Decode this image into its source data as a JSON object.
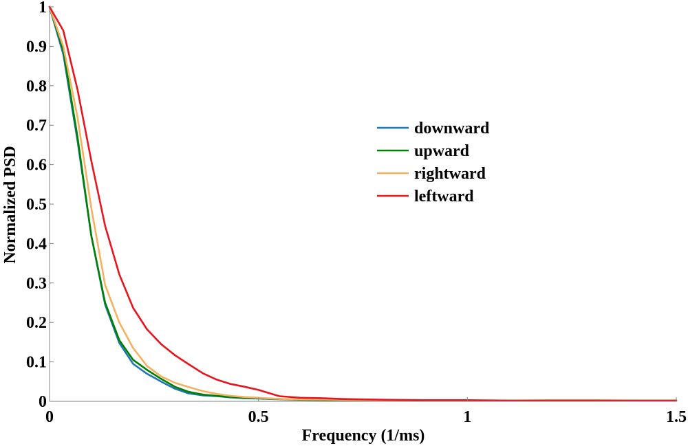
{
  "chart_data": {
    "type": "line",
    "title": "",
    "xlabel": "Frequency (1/ms)",
    "ylabel": "Normalized PSD",
    "xlim": [
      0,
      1.5
    ],
    "ylim": [
      0,
      1
    ],
    "xticks": [
      0,
      0.5,
      1,
      1.5
    ],
    "xtick_labels": [
      "0",
      "0.5",
      "1",
      "1.5"
    ],
    "yticks": [
      0,
      0.1,
      0.2,
      0.3,
      0.4,
      0.5,
      0.6,
      0.7,
      0.8,
      0.9,
      1
    ],
    "ytick_labels": [
      "0",
      "0.1",
      "0.2",
      "0.3",
      "0.4",
      "0.5",
      "0.6",
      "0.7",
      "0.8",
      "0.9",
      "1"
    ],
    "grid": false,
    "legend_position": "center-right",
    "series": [
      {
        "name": "downward",
        "color": "#1f77b4",
        "x": [
          0,
          0.033,
          0.067,
          0.1,
          0.133,
          0.167,
          0.2,
          0.233,
          0.267,
          0.3,
          0.333,
          0.367,
          0.4,
          0.433,
          0.467,
          0.5,
          0.55,
          0.6,
          0.7,
          0.8,
          0.9,
          1.0,
          1.1,
          1.2,
          1.3,
          1.4,
          1.5
        ],
        "y": [
          1.0,
          0.88,
          0.66,
          0.42,
          0.245,
          0.148,
          0.095,
          0.07,
          0.05,
          0.032,
          0.02,
          0.015,
          0.013,
          0.01,
          0.008,
          0.007,
          0.005,
          0.004,
          0.003,
          0.003,
          0.002,
          0.002,
          0.002,
          0.002,
          0.002,
          0.002,
          0.002
        ]
      },
      {
        "name": "upward",
        "color": "#008000",
        "x": [
          0,
          0.033,
          0.067,
          0.1,
          0.133,
          0.167,
          0.2,
          0.233,
          0.267,
          0.3,
          0.333,
          0.367,
          0.4,
          0.433,
          0.467,
          0.5,
          0.55,
          0.6,
          0.7,
          0.8,
          0.9,
          1.0,
          1.1,
          1.2,
          1.3,
          1.4,
          1.5
        ],
        "y": [
          1.0,
          0.89,
          0.67,
          0.42,
          0.25,
          0.155,
          0.105,
          0.08,
          0.057,
          0.037,
          0.024,
          0.017,
          0.014,
          0.011,
          0.009,
          0.008,
          0.006,
          0.004,
          0.003,
          0.003,
          0.002,
          0.002,
          0.002,
          0.002,
          0.002,
          0.002,
          0.002
        ]
      },
      {
        "name": "rightward",
        "color": "#f5b060",
        "x": [
          0,
          0.033,
          0.067,
          0.1,
          0.133,
          0.167,
          0.2,
          0.233,
          0.267,
          0.3,
          0.333,
          0.367,
          0.4,
          0.433,
          0.467,
          0.5,
          0.55,
          0.6,
          0.7,
          0.8,
          0.9,
          1.0,
          1.1,
          1.2,
          1.3,
          1.4,
          1.5
        ],
        "y": [
          1.0,
          0.9,
          0.72,
          0.49,
          0.295,
          0.2,
          0.135,
          0.09,
          0.063,
          0.047,
          0.036,
          0.026,
          0.019,
          0.014,
          0.011,
          0.009,
          0.006,
          0.005,
          0.004,
          0.003,
          0.003,
          0.002,
          0.002,
          0.003,
          0.003,
          0.002,
          0.002
        ]
      },
      {
        "name": "leftward",
        "color": "#e8141e",
        "x": [
          0,
          0.033,
          0.067,
          0.1,
          0.133,
          0.167,
          0.2,
          0.233,
          0.267,
          0.3,
          0.333,
          0.367,
          0.4,
          0.433,
          0.467,
          0.5,
          0.55,
          0.6,
          0.65,
          0.7,
          0.8,
          0.9,
          1.0,
          1.1,
          1.2,
          1.3,
          1.4,
          1.5
        ],
        "y": [
          1.0,
          0.94,
          0.79,
          0.61,
          0.445,
          0.322,
          0.237,
          0.183,
          0.145,
          0.117,
          0.094,
          0.071,
          0.055,
          0.044,
          0.037,
          0.029,
          0.013,
          0.009,
          0.008,
          0.006,
          0.004,
          0.003,
          0.003,
          0.002,
          0.002,
          0.002,
          0.002,
          0.002
        ]
      }
    ]
  }
}
